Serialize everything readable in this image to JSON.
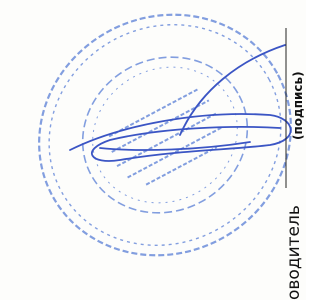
{
  "document": {
    "field_caption": "(подпись)",
    "role_label": "оводитель"
  }
}
